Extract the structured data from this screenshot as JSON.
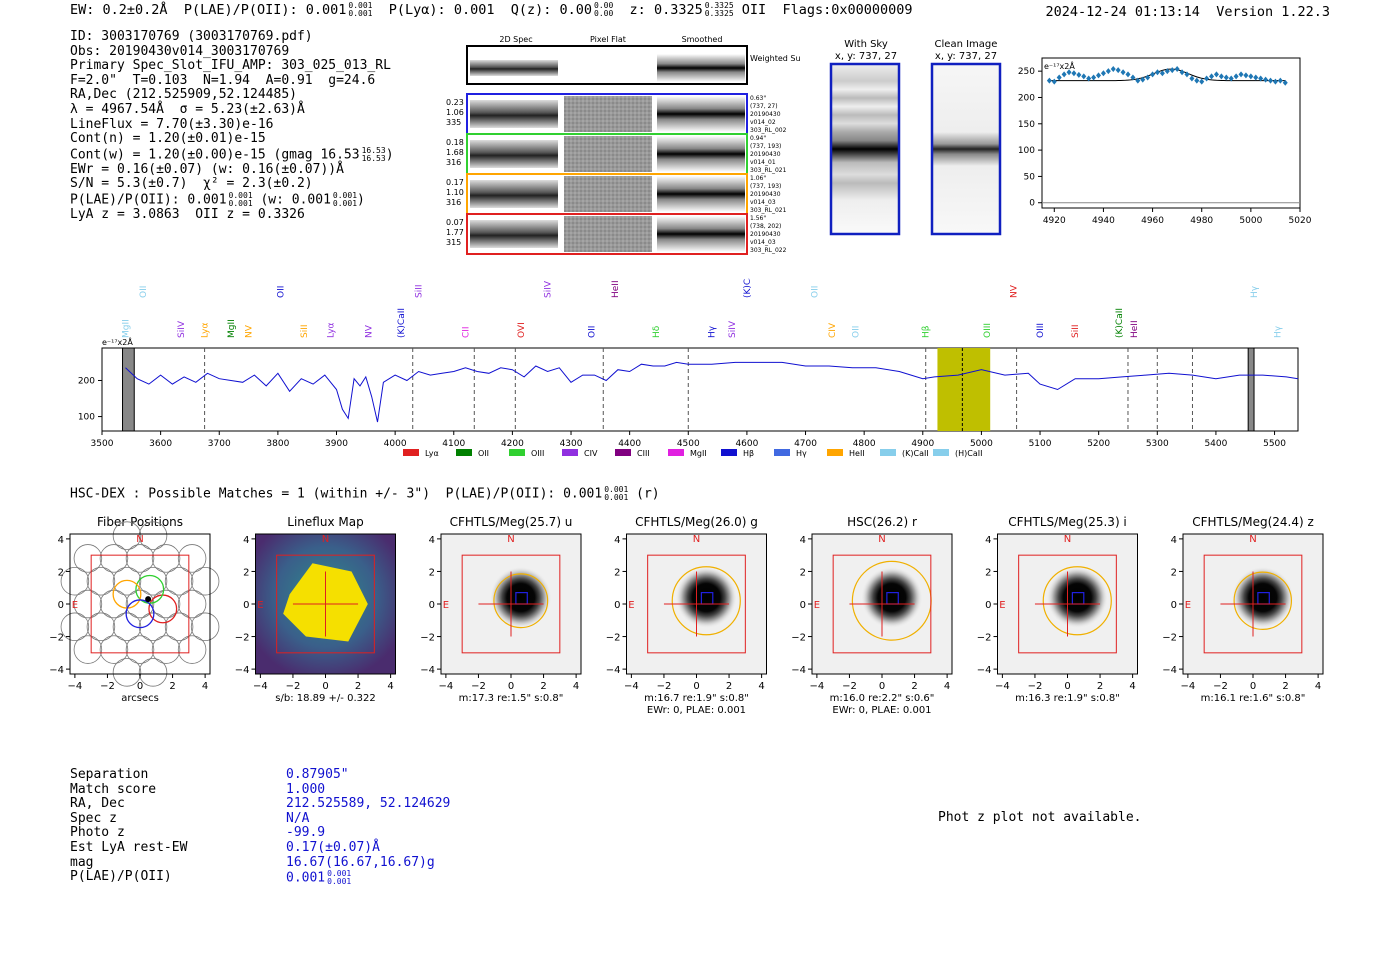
{
  "header": {
    "ew_label": "EW:",
    "ew_value": "0.2±0.2Å",
    "plae_label": "P(LAE)/P(OII):",
    "plae_value": "0.001",
    "plae_sup": "0.001",
    "plae_sub": "0.001",
    "plya_label": "P(Lyα):",
    "plya_value": "0.001",
    "qz_label": "Q(z):",
    "qz_value": "0.00",
    "qz_sup": "0.00",
    "qz_sub": "0.00",
    "z_label": "z:",
    "z_value": "0.3325",
    "z_sup": "0.3325",
    "z_sub": "0.3325",
    "z_line": "OII",
    "flags_label": "Flags:",
    "flags_value": "0x00000009",
    "timestamp": "2024-12-24 01:13:14",
    "version": "Version 1.22.3"
  },
  "info": {
    "id_line": "ID: 3003170769 (3003170769.pdf)",
    "obs_line": "Obs: 20190430v014_3003170769",
    "primary_line": "Primary Spec_Slot_IFU_AMP: 303_025_013_RL",
    "f_line": "F=2.0\"  T=0.103  N=1.94  A=0.91  g=24.6",
    "radec_line": "RA,Dec (212.525909,52.124485)",
    "lambda_line": "λ = 4967.54Å  σ = 5.23(±2.63)Å",
    "lineflux_line": "LineFlux = 7.70(±3.30)e-16",
    "contn_line": "Cont(n) = 1.20(±0.01)e-15",
    "contw_line": "Cont(w) = 1.20(±0.00)e-15 (gmag 16.53",
    "contw_sup": "16.53",
    "contw_sub": "16.53",
    "ewr_line": "EWr = 0.16(±0.07) (w: 0.16(±0.07))Å",
    "sn_line": "S/N = 5.3(±0.7)  χ² = 2.3(±0.2)",
    "plae_line_a": "P(LAE)/P(OII): 0.001",
    "plae_line_b": "(w: 0.001",
    "plae_sup": "0.001",
    "plae_sub": "0.001",
    "lya_line": "LyA z = 3.0863  OII z = 0.3326"
  },
  "cutouts": {
    "col_headers": [
      "2D Spec",
      "Pixel Flat",
      "Smoothed"
    ],
    "weighted_sum_label": "Weighted Sum",
    "fibers": [
      {
        "left": [
          "0.23",
          "1.06",
          "335"
        ],
        "right": [
          "0.63\"",
          "(737, 27)",
          "20190430",
          "v014_02",
          "303_RL_002"
        ],
        "color": "#2020e0"
      },
      {
        "left": [
          "0.18",
          "1.68",
          "316"
        ],
        "right": [
          "0.94\"",
          "(737, 193)",
          "20190430",
          "v014_01",
          "303_RL_021"
        ],
        "color": "#30d030"
      },
      {
        "left": [
          "0.17",
          "1.10",
          "316"
        ],
        "right": [
          "1.06\"",
          "(737, 193)",
          "20190430",
          "v014_03",
          "303_RL_021"
        ],
        "color": "#ffa500"
      },
      {
        "left": [
          "0.07",
          "1.77",
          "315"
        ],
        "right": [
          "1.56\"",
          "(738, 202)",
          "20190430",
          "v014_03",
          "303_RL_022"
        ],
        "color": "#e02020"
      }
    ],
    "with_sky_title": "With Sky",
    "with_sky_coords": "x, y: 737, 27",
    "clean_title": "Clean Image",
    "clean_coords": "x, y: 737, 27"
  },
  "chart_data": [
    {
      "type": "line",
      "name": "zoomed spectrum",
      "ylabel_units": "e⁻¹⁷x2Å",
      "xlim": [
        4915,
        5020
      ],
      "ylim": [
        -10,
        275
      ],
      "xticks": [
        4920,
        4940,
        4960,
        4980,
        5000,
        5020
      ],
      "yticks": [
        0,
        50,
        100,
        150,
        200,
        250
      ],
      "x": [
        4918,
        4920,
        4922,
        4924,
        4926,
        4928,
        4930,
        4932,
        4934,
        4936,
        4938,
        4940,
        4942,
        4944,
        4946,
        4948,
        4950,
        4952,
        4954,
        4956,
        4958,
        4960,
        4962,
        4964,
        4966,
        4968,
        4970,
        4972,
        4974,
        4976,
        4978,
        4980,
        4982,
        4984,
        4986,
        4988,
        4990,
        4992,
        4994,
        4996,
        4998,
        5000,
        5002,
        5004,
        5006,
        5008,
        5010,
        5012,
        5014
      ],
      "y": [
        232,
        230,
        238,
        244,
        248,
        246,
        243,
        240,
        236,
        238,
        242,
        246,
        250,
        254,
        252,
        248,
        244,
        238,
        232,
        234,
        238,
        244,
        248,
        246,
        250,
        252,
        254,
        248,
        244,
        236,
        232,
        230,
        236,
        240,
        244,
        240,
        238,
        236,
        240,
        244,
        242,
        240,
        238,
        236,
        234,
        232,
        230,
        232,
        228
      ],
      "fit": "gaussian continuum ~232 peak at 4967.5"
    },
    {
      "type": "line",
      "name": "full spectrum",
      "ylabel_units": "e⁻¹⁷x2Å",
      "xlim": [
        3500,
        5540
      ],
      "ylim": [
        60,
        290
      ],
      "xticks": [
        3500,
        3600,
        3700,
        3800,
        3900,
        4000,
        4100,
        4200,
        4300,
        4400,
        4500,
        4600,
        4700,
        4800,
        4900,
        5000,
        5100,
        5200,
        5300,
        5400,
        5500
      ],
      "yticks": [
        100,
        200
      ],
      "x": [
        3540,
        3560,
        3580,
        3600,
        3620,
        3640,
        3660,
        3680,
        3700,
        3720,
        3740,
        3760,
        3780,
        3800,
        3820,
        3840,
        3860,
        3880,
        3900,
        3910,
        3920,
        3930,
        3940,
        3950,
        3960,
        3970,
        3980,
        4000,
        4020,
        4040,
        4060,
        4080,
        4100,
        4120,
        4140,
        4160,
        4180,
        4200,
        4220,
        4240,
        4260,
        4280,
        4300,
        4320,
        4340,
        4360,
        4380,
        4400,
        4420,
        4440,
        4460,
        4480,
        4500,
        4540,
        4580,
        4620,
        4660,
        4700,
        4740,
        4780,
        4820,
        4860,
        4880,
        4900,
        4920,
        4960,
        5000,
        5040,
        5080,
        5100,
        5130,
        5160,
        5200,
        5240,
        5280,
        5320,
        5360,
        5400,
        5440,
        5480,
        5520,
        5540
      ],
      "y": [
        235,
        205,
        190,
        215,
        190,
        210,
        195,
        220,
        205,
        200,
        195,
        215,
        185,
        220,
        170,
        205,
        190,
        215,
        175,
        120,
        95,
        205,
        185,
        210,
        155,
        85,
        195,
        215,
        200,
        225,
        215,
        220,
        225,
        235,
        225,
        220,
        235,
        230,
        210,
        240,
        225,
        235,
        195,
        215,
        215,
        200,
        230,
        225,
        245,
        240,
        240,
        250,
        245,
        245,
        250,
        250,
        250,
        240,
        240,
        235,
        235,
        225,
        215,
        205,
        210,
        215,
        230,
        215,
        220,
        190,
        175,
        205,
        205,
        210,
        215,
        220,
        215,
        205,
        215,
        215,
        210,
        205
      ],
      "emission_lines": [
        "MgII",
        "OII",
        "SiIV",
        "Lyα",
        "MgII",
        "NV",
        "OII",
        "SiII",
        "Lyα",
        "NV",
        "(K)CaII",
        "SiII",
        "CII",
        "OVI",
        "SiIV",
        "OII",
        "HeII",
        "Hδ",
        "Hγ",
        "SiIV",
        "(K)CaII",
        "OII",
        "CIV",
        "OII",
        "Hβ",
        "OIII",
        "NV",
        "OIII",
        "SiII",
        "(K)CaII",
        "HeII",
        "Hγ",
        "Hγ"
      ],
      "highlight_band": [
        4925,
        5015
      ],
      "legend": [
        "Lyα",
        "OII",
        "OIII",
        "CIV",
        "CIII",
        "MgII",
        "Hβ",
        "Hγ",
        "HeII",
        "(K)CaII",
        "(H)CaII"
      ]
    }
  ],
  "hscdex": {
    "line": "HSC-DEX : Possible Matches = 1 (within +/- 3\")  P(LAE)/P(OII): 0.001",
    "sup": "0.001",
    "sub": "0.001",
    "suffix": "(r)"
  },
  "stamps": [
    {
      "title": "Fiber Positions",
      "caption": "arcsecs",
      "caption2": ""
    },
    {
      "title": "Lineflux Map",
      "caption": "s/b: 18.89 +/- 0.322",
      "caption2": ""
    },
    {
      "title": "CFHTLS/Meg(25.7) u",
      "caption": "m:17.3  re:1.5\"  s:0.8\"",
      "caption2": ""
    },
    {
      "title": "CFHTLS/Meg(26.0) g",
      "caption": "m:16.7  re:1.9\"  s:0.8\"",
      "caption2": "EWr: 0, PLAE: 0.001"
    },
    {
      "title": "HSC(26.2) r",
      "caption": "m:16.0  re:2.2\"  s:0.6\"",
      "caption2": "EWr: 0, PLAE: 0.001"
    },
    {
      "title": "CFHTLS/Meg(25.3) i",
      "caption": "m:16.3  re:1.9\"  s:0.8\"",
      "caption2": ""
    },
    {
      "title": "CFHTLS/Meg(24.4) z",
      "caption": "m:16.1  re:1.6\"  s:0.8\"",
      "caption2": ""
    }
  ],
  "stamp_axis": {
    "ticks": [
      "−4",
      "−2",
      "0",
      "2",
      "4"
    ],
    "north": "N",
    "east": "E"
  },
  "matches": [
    {
      "label": "Separation",
      "value": "0.87905\""
    },
    {
      "label": "Match score",
      "value": "1.000"
    },
    {
      "label": "RA, Dec",
      "value": "212.525589, 52.124629"
    },
    {
      "label": "Spec z",
      "value": "N/A"
    },
    {
      "label": "Photo z",
      "value": "-99.9"
    },
    {
      "label": "Est LyA rest-EW",
      "value": "0.17(±0.07)Å"
    },
    {
      "label": "mag",
      "value": "16.67(16.67,16.67)g"
    },
    {
      "label": "P(LAE)/P(OII)",
      "value": "0.001",
      "sup": "0.001",
      "sub": "0.001"
    }
  ],
  "photz_message": "Phot z plot not available."
}
